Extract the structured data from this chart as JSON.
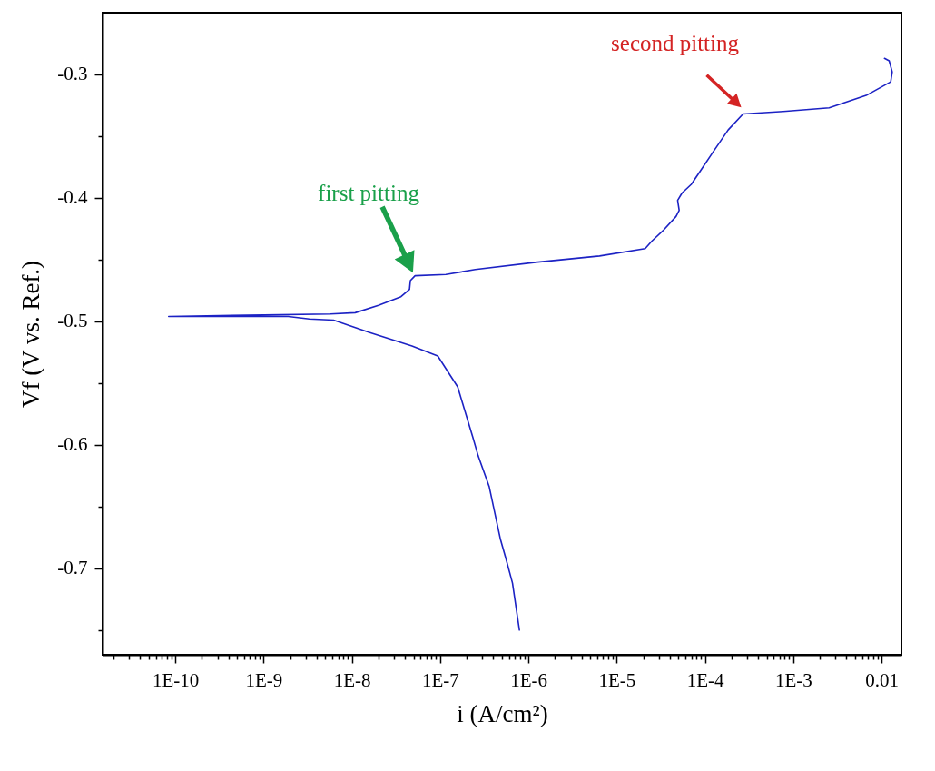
{
  "chart_data": {
    "type": "line",
    "xlabel": "i (A/cm²)",
    "ylabel": "Vf (V vs. Ref.)",
    "log": "x",
    "xlim": [
      1.5e-11,
      0.0168
    ],
    "ylim": [
      -0.77,
      -0.25
    ],
    "xticks": [
      {
        "value": 2e-11,
        "label": null
      },
      {
        "value": 3e-11,
        "label": null
      },
      {
        "value": 4e-11,
        "label": null
      },
      {
        "value": 5e-11,
        "label": null
      },
      {
        "value": 6e-11,
        "label": null
      },
      {
        "value": 7e-11,
        "label": null
      },
      {
        "value": 8e-11,
        "label": null
      },
      {
        "value": 9e-11,
        "label": null
      },
      {
        "value": 1e-10,
        "label": "1E-10"
      },
      {
        "value": 2e-10,
        "label": null
      },
      {
        "value": 3e-10,
        "label": null
      },
      {
        "value": 4e-10,
        "label": null
      },
      {
        "value": 5e-10,
        "label": null
      },
      {
        "value": 6e-10,
        "label": null
      },
      {
        "value": 7e-10,
        "label": null
      },
      {
        "value": 8e-10,
        "label": null
      },
      {
        "value": 9e-10,
        "label": null
      },
      {
        "value": 1e-09,
        "label": "1E-9"
      },
      {
        "value": 2e-09,
        "label": null
      },
      {
        "value": 3e-09,
        "label": null
      },
      {
        "value": 4e-09,
        "label": null
      },
      {
        "value": 5e-09,
        "label": null
      },
      {
        "value": 6e-09,
        "label": null
      },
      {
        "value": 7e-09,
        "label": null
      },
      {
        "value": 8e-09,
        "label": null
      },
      {
        "value": 9e-09,
        "label": null
      },
      {
        "value": 1e-08,
        "label": "1E-8"
      },
      {
        "value": 2e-08,
        "label": null
      },
      {
        "value": 3e-08,
        "label": null
      },
      {
        "value": 4e-08,
        "label": null
      },
      {
        "value": 5e-08,
        "label": null
      },
      {
        "value": 6e-08,
        "label": null
      },
      {
        "value": 7e-08,
        "label": null
      },
      {
        "value": 8e-08,
        "label": null
      },
      {
        "value": 9e-08,
        "label": null
      },
      {
        "value": 1e-07,
        "label": "1E-7"
      },
      {
        "value": 2e-07,
        "label": null
      },
      {
        "value": 3e-07,
        "label": null
      },
      {
        "value": 4e-07,
        "label": null
      },
      {
        "value": 5e-07,
        "label": null
      },
      {
        "value": 6e-07,
        "label": null
      },
      {
        "value": 7e-07,
        "label": null
      },
      {
        "value": 8e-07,
        "label": null
      },
      {
        "value": 9e-07,
        "label": null
      },
      {
        "value": 1e-06,
        "label": "1E-6"
      },
      {
        "value": 2e-06,
        "label": null
      },
      {
        "value": 3e-06,
        "label": null
      },
      {
        "value": 4e-06,
        "label": null
      },
      {
        "value": 5e-06,
        "label": null
      },
      {
        "value": 6e-06,
        "label": null
      },
      {
        "value": 7e-06,
        "label": null
      },
      {
        "value": 8e-06,
        "label": null
      },
      {
        "value": 9e-06,
        "label": null
      },
      {
        "value": 1e-05,
        "label": "1E-5"
      },
      {
        "value": 2e-05,
        "label": null
      },
      {
        "value": 3e-05,
        "label": null
      },
      {
        "value": 4e-05,
        "label": null
      },
      {
        "value": 5e-05,
        "label": null
      },
      {
        "value": 6e-05,
        "label": null
      },
      {
        "value": 7e-05,
        "label": null
      },
      {
        "value": 8e-05,
        "label": null
      },
      {
        "value": 9e-05,
        "label": null
      },
      {
        "value": 0.0001,
        "label": "1E-4"
      },
      {
        "value": 0.0002,
        "label": null
      },
      {
        "value": 0.0003,
        "label": null
      },
      {
        "value": 0.0004,
        "label": null
      },
      {
        "value": 0.0005,
        "label": null
      },
      {
        "value": 0.0006,
        "label": null
      },
      {
        "value": 0.0007,
        "label": null
      },
      {
        "value": 0.0008,
        "label": null
      },
      {
        "value": 0.0009,
        "label": null
      },
      {
        "value": 0.001,
        "label": "1E-3"
      },
      {
        "value": 0.002,
        "label": null
      },
      {
        "value": 0.003,
        "label": null
      },
      {
        "value": 0.004,
        "label": null
      },
      {
        "value": 0.005,
        "label": null
      },
      {
        "value": 0.006,
        "label": null
      },
      {
        "value": 0.007,
        "label": null
      },
      {
        "value": 0.008,
        "label": null
      },
      {
        "value": 0.009,
        "label": null
      },
      {
        "value": 0.01,
        "label": "0.01"
      }
    ],
    "yticks": [
      {
        "value": -0.75,
        "label": null
      },
      -0.7,
      {
        "value": -0.65,
        "label": null
      },
      -0.6,
      {
        "value": -0.55,
        "label": null
      },
      -0.5,
      {
        "value": -0.45,
        "label": null
      },
      -0.4,
      {
        "value": -0.35,
        "label": null
      },
      -0.3
    ],
    "series": [
      {
        "color": "#1c22c4",
        "x": [
          7.9e-07,
          6.6e-07,
          5.6e-07,
          4.8e-07,
          3.6e-07,
          2.7e-07,
          2.35e-07,
          1.86e-07,
          1.58e-07,
          9.4e-08,
          4.8e-08,
          1.6e-08,
          6.2e-09,
          3.3e-09,
          1.9e-09,
          1.04e-09,
          5.8e-10,
          3.6e-10,
          8.4e-11,
          5.7e-09,
          1.09e-08,
          2e-08,
          3.6e-08,
          4.5e-08,
          4.6e-08,
          5.2e-08,
          1.16e-07,
          2.5e-07,
          1.27e-06,
          6.4e-06,
          2.1e-05,
          2.5e-05,
          3.4e-05,
          4.7e-05,
          5.1e-05,
          4.9e-05,
          5.5e-05,
          7e-05,
          8.9e-05,
          0.000123,
          0.000183,
          0.00027,
          0.00077,
          0.00255,
          0.0067,
          0.0127,
          0.0132,
          0.0122,
          0.0108
        ],
        "values": [
          -0.75,
          -0.712,
          -0.693,
          -0.676,
          -0.634,
          -0.609,
          -0.594,
          -0.57,
          -0.553,
          -0.528,
          -0.52,
          -0.509,
          -0.499,
          -0.498,
          -0.496,
          -0.496,
          -0.496,
          -0.496,
          -0.496,
          -0.494,
          -0.493,
          -0.487,
          -0.48,
          -0.474,
          -0.467,
          -0.463,
          -0.462,
          -0.458,
          -0.452,
          -0.447,
          -0.441,
          -0.435,
          -0.426,
          -0.415,
          -0.41,
          -0.402,
          -0.396,
          -0.389,
          -0.378,
          -0.363,
          -0.345,
          -0.332,
          -0.33,
          -0.327,
          -0.317,
          -0.306,
          -0.298,
          -0.289,
          -0.287
        ]
      }
    ],
    "annotations": [
      "first pitting",
      {
        "text": "second pitting",
        "x": 0.00027,
        "y": -0.332
      }
    ]
  }
}
